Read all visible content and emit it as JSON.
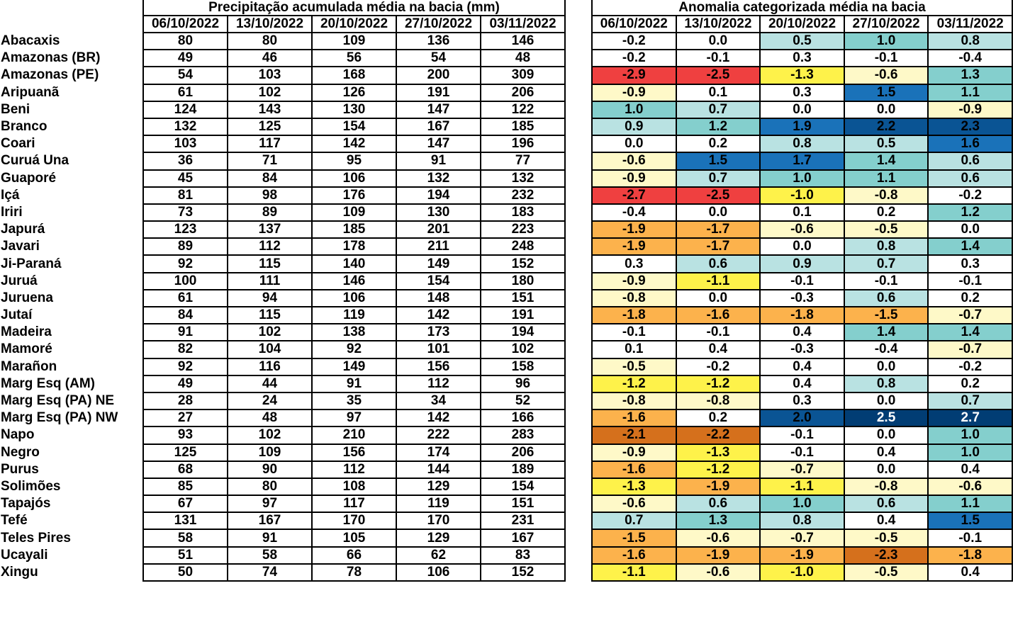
{
  "precip_table": {
    "title": "Precipitação acumulada média na bacia (mm)",
    "dates": [
      "06/10/2022",
      "13/10/2022",
      "20/10/2022",
      "27/10/2022",
      "03/11/2022"
    ]
  },
  "anomaly_table": {
    "title": "Anomalia categorizada média na bacia",
    "dates": [
      "06/10/2022",
      "13/10/2022",
      "20/10/2022",
      "27/10/2022",
      "03/11/2022"
    ]
  },
  "category_colors": {
    "red": "#ef4040",
    "dor": "#d5701c",
    "or": "#fcb24c",
    "y": "#fef24a",
    "ly": "#fef9c8",
    "w": "#ffffff",
    "lb": "#b9e2e2",
    "t": "#84cfcd",
    "b": "#1a72b9",
    "db": "#0a5494",
    "nb": "#013d74"
  },
  "rows": [
    {
      "name": "Abacaxis",
      "precip": [
        "80",
        "80",
        "109",
        "136",
        "146"
      ],
      "anom": [
        "-0.2",
        "0.0",
        "0.5",
        "1.0",
        "0.8"
      ]
    },
    {
      "name": "Amazonas (BR)",
      "precip": [
        "49",
        "46",
        "56",
        "54",
        "48"
      ],
      "anom": [
        "-0.2",
        "-0.1",
        "0.3",
        "-0.1",
        "-0.4"
      ]
    },
    {
      "name": "Amazonas (PE)",
      "precip": [
        "54",
        "103",
        "168",
        "200",
        "309"
      ],
      "anom": [
        "-2.9",
        "-2.5",
        "-1.3",
        "-0.6",
        "1.3"
      ]
    },
    {
      "name": "Aripuanã",
      "precip": [
        "61",
        "102",
        "126",
        "191",
        "206"
      ],
      "anom": [
        "-0.9",
        "0.1",
        "0.3",
        "1.5",
        "1.1"
      ]
    },
    {
      "name": "Beni",
      "precip": [
        "124",
        "143",
        "130",
        "147",
        "122"
      ],
      "anom": [
        "1.0",
        "0.7",
        "0.0",
        "0.0",
        "-0.9"
      ]
    },
    {
      "name": "Branco",
      "precip": [
        "132",
        "125",
        "154",
        "167",
        "185"
      ],
      "anom": [
        "0.9",
        "1.2",
        "1.9",
        "2.2",
        "2.3"
      ]
    },
    {
      "name": "Coari",
      "precip": [
        "103",
        "117",
        "142",
        "147",
        "196"
      ],
      "anom": [
        "0.0",
        "0.2",
        "0.8",
        "0.5",
        "1.6"
      ]
    },
    {
      "name": "Curuá Una",
      "precip": [
        "36",
        "71",
        "95",
        "91",
        "77"
      ],
      "anom": [
        "-0.6",
        "1.5",
        "1.7",
        "1.4",
        "0.6"
      ]
    },
    {
      "name": "Guaporé",
      "precip": [
        "45",
        "84",
        "106",
        "132",
        "132"
      ],
      "anom": [
        "-0.9",
        "0.7",
        "1.0",
        "1.1",
        "0.6"
      ]
    },
    {
      "name": "Içá",
      "precip": [
        "81",
        "98",
        "176",
        "194",
        "232"
      ],
      "anom": [
        "-2.7",
        "-2.5",
        "-1.0",
        "-0.8",
        "-0.2"
      ]
    },
    {
      "name": "Iriri",
      "precip": [
        "73",
        "89",
        "109",
        "130",
        "183"
      ],
      "anom": [
        "-0.4",
        "0.0",
        "0.1",
        "0.2",
        "1.2"
      ]
    },
    {
      "name": "Japurá",
      "precip": [
        "123",
        "137",
        "185",
        "201",
        "223"
      ],
      "anom": [
        "-1.9",
        "-1.7",
        "-0.6",
        "-0.5",
        "0.0"
      ]
    },
    {
      "name": "Javari",
      "precip": [
        "89",
        "112",
        "178",
        "211",
        "248"
      ],
      "anom": [
        "-1.9",
        "-1.7",
        "0.0",
        "0.8",
        "1.4"
      ]
    },
    {
      "name": "Ji-Paraná",
      "precip": [
        "92",
        "115",
        "140",
        "149",
        "152"
      ],
      "anom": [
        "0.3",
        "0.6",
        "0.9",
        "0.7",
        "0.3"
      ]
    },
    {
      "name": "Juruá",
      "precip": [
        "100",
        "111",
        "146",
        "154",
        "180"
      ],
      "anom": [
        "-0.9",
        "-1.1",
        "-0.1",
        "-0.1",
        "-0.1"
      ]
    },
    {
      "name": "Juruena",
      "precip": [
        "61",
        "94",
        "106",
        "148",
        "151"
      ],
      "anom": [
        "-0.8",
        "0.0",
        "-0.3",
        "0.6",
        "0.2"
      ]
    },
    {
      "name": "Jutaí",
      "precip": [
        "84",
        "115",
        "119",
        "142",
        "191"
      ],
      "anom": [
        "-1.8",
        "-1.6",
        "-1.8",
        "-1.5",
        "-0.7"
      ]
    },
    {
      "name": "Madeira",
      "precip": [
        "91",
        "102",
        "138",
        "173",
        "194"
      ],
      "anom": [
        "-0.1",
        "-0.1",
        "0.4",
        "1.4",
        "1.4"
      ]
    },
    {
      "name": "Mamoré",
      "precip": [
        "82",
        "104",
        "92",
        "101",
        "102"
      ],
      "anom": [
        "0.1",
        "0.4",
        "-0.3",
        "-0.4",
        "-0.7"
      ]
    },
    {
      "name": "Marañon",
      "precip": [
        "92",
        "116",
        "149",
        "156",
        "158"
      ],
      "anom": [
        "-0.5",
        "-0.2",
        "0.4",
        "0.0",
        "-0.2"
      ]
    },
    {
      "name": "Marg Esq (AM)",
      "precip": [
        "49",
        "44",
        "91",
        "112",
        "96"
      ],
      "anom": [
        "-1.2",
        "-1.2",
        "0.4",
        "0.8",
        "0.2"
      ]
    },
    {
      "name": "Marg Esq (PA) NE",
      "precip": [
        "28",
        "24",
        "35",
        "34",
        "52"
      ],
      "anom": [
        "-0.8",
        "-0.8",
        "0.3",
        "0.0",
        "0.7"
      ]
    },
    {
      "name": "Marg Esq (PA) NW",
      "precip": [
        "27",
        "48",
        "97",
        "142",
        "166"
      ],
      "anom": [
        "-1.6",
        "0.2",
        "2.0",
        "2.5",
        "2.7"
      ]
    },
    {
      "name": "Napo",
      "precip": [
        "93",
        "102",
        "210",
        "222",
        "283"
      ],
      "anom": [
        "-2.1",
        "-2.2",
        "-0.1",
        "0.0",
        "1.0"
      ]
    },
    {
      "name": "Negro",
      "precip": [
        "125",
        "109",
        "156",
        "174",
        "206"
      ],
      "anom": [
        "-0.9",
        "-1.3",
        "-0.1",
        "0.4",
        "1.0"
      ]
    },
    {
      "name": "Purus",
      "precip": [
        "68",
        "90",
        "112",
        "144",
        "189"
      ],
      "anom": [
        "-1.6",
        "-1.2",
        "-0.7",
        "0.0",
        "0.4"
      ]
    },
    {
      "name": "Solimões",
      "precip": [
        "85",
        "80",
        "108",
        "129",
        "154"
      ],
      "anom": [
        "-1.3",
        "-1.9",
        "-1.1",
        "-0.8",
        "-0.6"
      ]
    },
    {
      "name": "Tapajós",
      "precip": [
        "67",
        "97",
        "117",
        "119",
        "151"
      ],
      "anom": [
        "-0.6",
        "0.6",
        "1.0",
        "0.6",
        "1.1"
      ]
    },
    {
      "name": "Tefé",
      "precip": [
        "131",
        "167",
        "170",
        "170",
        "231"
      ],
      "anom": [
        "0.7",
        "1.3",
        "0.8",
        "0.4",
        "1.5"
      ]
    },
    {
      "name": "Teles Pires",
      "precip": [
        "58",
        "91",
        "105",
        "129",
        "167"
      ],
      "anom": [
        "-1.5",
        "-0.6",
        "-0.7",
        "-0.5",
        "-0.1"
      ]
    },
    {
      "name": "Ucayali",
      "precip": [
        "51",
        "58",
        "66",
        "62",
        "83"
      ],
      "anom": [
        "-1.6",
        "-1.9",
        "-1.9",
        "-2.3",
        "-1.8"
      ]
    },
    {
      "name": "Xingu",
      "precip": [
        "50",
        "74",
        "78",
        "106",
        "152"
      ],
      "anom": [
        "-1.1",
        "-0.6",
        "-1.0",
        "-0.5",
        "0.4"
      ]
    }
  ]
}
